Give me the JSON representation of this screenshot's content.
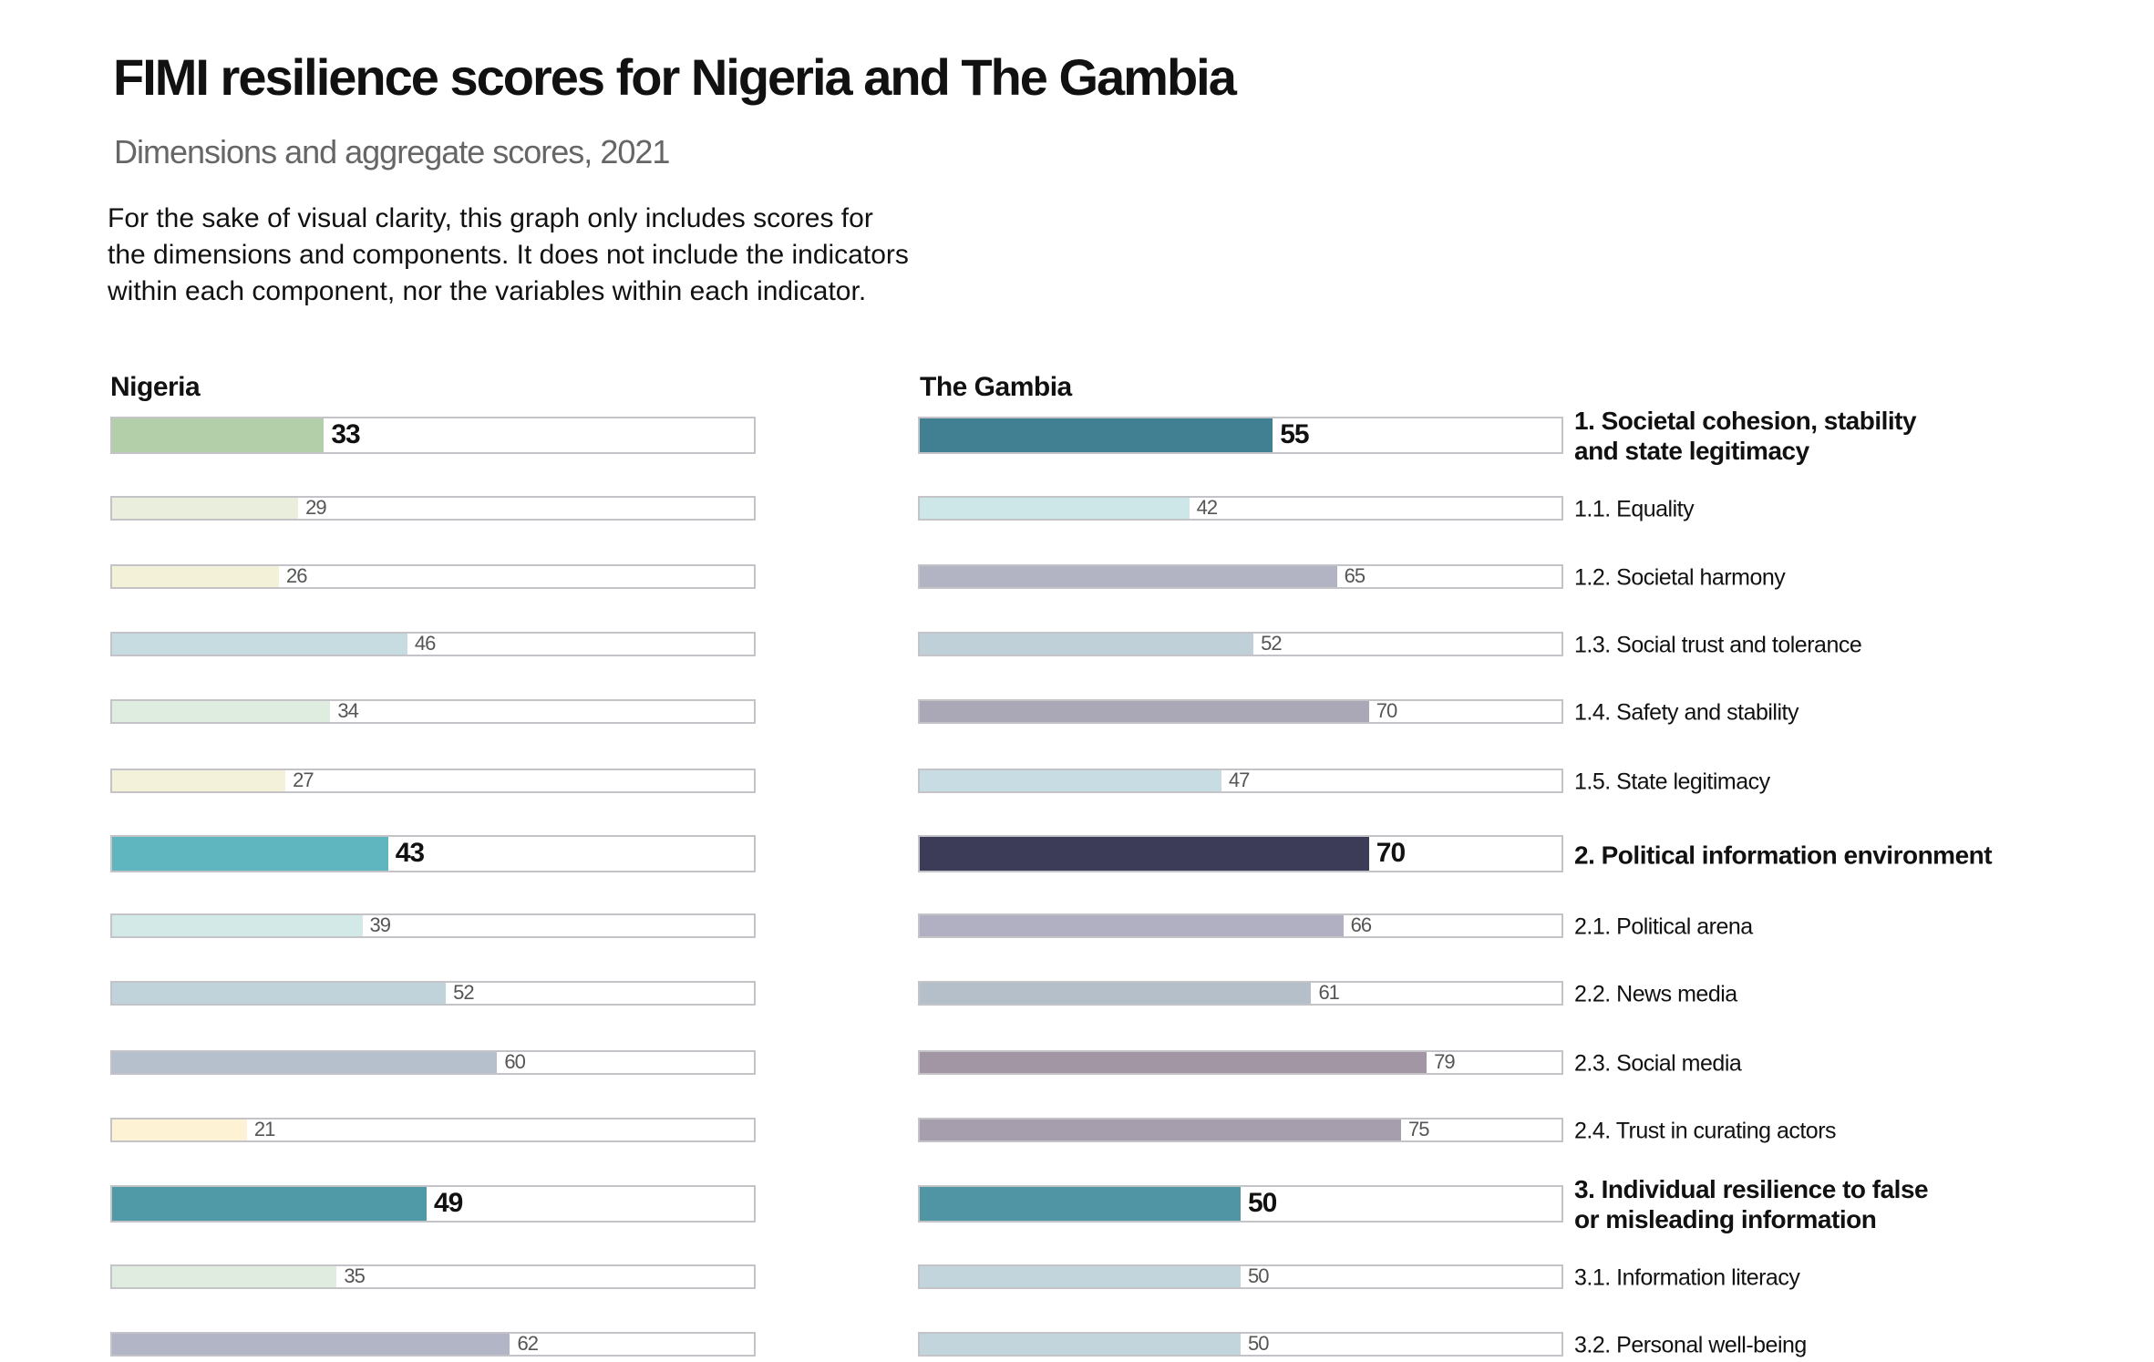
{
  "header": {
    "title": "FIMI resilience scores for Nigeria and The Gambia",
    "subtitle": "Dimensions and aggregate scores, 2021",
    "description": [
      "For the sake of visual clarity, this graph only includes scores for",
      "the dimensions and components. It does not include the indicators",
      "within each component, nor the variables within each indicator."
    ]
  },
  "chart_data": {
    "type": "bar",
    "orientation": "horizontal",
    "title": "FIMI resilience scores for Nigeria and The Gambia",
    "subtitle": "Dimensions and aggregate scores, 2021",
    "xlim": [
      0,
      100
    ],
    "panels": [
      "Nigeria",
      "The Gambia"
    ],
    "categories": [
      {
        "label": "1. Societal cohesion, stability\n and state legitimacy",
        "level": "dimension"
      },
      {
        "label": "1.1. Equality",
        "level": "component"
      },
      {
        "label": "1.2. Societal harmony",
        "level": "component"
      },
      {
        "label": "1.3. Social trust and tolerance",
        "level": "component"
      },
      {
        "label": "1.4. Safety and stability",
        "level": "component"
      },
      {
        "label": "1.5. State legitimacy",
        "level": "component"
      },
      {
        "label": "2. Political information environment",
        "level": "dimension"
      },
      {
        "label": "2.1. Political arena",
        "level": "component"
      },
      {
        "label": "2.2. News media",
        "level": "component"
      },
      {
        "label": "2.3. Social media",
        "level": "component"
      },
      {
        "label": "2.4. Trust in curating actors",
        "level": "component"
      },
      {
        "label": "3. Individual resilience to false\n or misleading information",
        "level": "dimension"
      },
      {
        "label": "3.1. Information literacy",
        "level": "component"
      },
      {
        "label": "3.2. Personal well-being",
        "level": "component"
      }
    ],
    "series": [
      {
        "name": "Nigeria",
        "values": [
          33,
          29,
          26,
          46,
          34,
          27,
          43,
          39,
          52,
          60,
          21,
          49,
          35,
          62
        ],
        "colors": [
          "#b3cfaa",
          "#eaeedd",
          "#f4f1d9",
          "#c6dce1",
          "#dfece0",
          "#f3f1da",
          "#5fb6bf",
          "#d3e9e8",
          "#c0d3da",
          "#b6c0cc",
          "#fdf3d4",
          "#4f9aa6",
          "#e0ecdf",
          "#b1b5c6"
        ]
      },
      {
        "name": "The Gambia",
        "values": [
          55,
          42,
          65,
          52,
          70,
          47,
          70,
          66,
          61,
          79,
          75,
          50,
          50,
          50
        ],
        "colors": [
          "#417f93",
          "#cde6e8",
          "#b2b4c4",
          "#c0d0d8",
          "#aaa8b6",
          "#c8dde3",
          "#3c3c58",
          "#b0b0c2",
          "#b4bfca",
          "#a296a4",
          "#a69eac",
          "#4f95a3",
          "#c2d5dc",
          "#c2d5dc"
        ]
      }
    ]
  }
}
